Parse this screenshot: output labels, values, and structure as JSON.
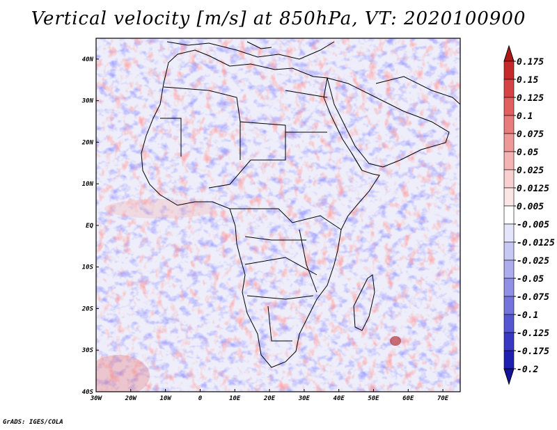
{
  "title": "Vertical velocity [m/s] at 850hPa, VT: 2020100900",
  "credit": "GrADS: IGES/COLA",
  "map": {
    "region": "Africa and surrounding oceans",
    "variable": "vertical velocity",
    "units": "m/s",
    "level": "850hPa",
    "valid_time": "2020100900",
    "lon_range": [
      -30,
      75
    ],
    "lat_range": [
      -40,
      45
    ],
    "lon_ticks": [
      {
        "v": -30,
        "label": "30W"
      },
      {
        "v": -20,
        "label": "20W"
      },
      {
        "v": -10,
        "label": "10W"
      },
      {
        "v": 0,
        "label": "0"
      },
      {
        "v": 10,
        "label": "10E"
      },
      {
        "v": 20,
        "label": "20E"
      },
      {
        "v": 30,
        "label": "30E"
      },
      {
        "v": 40,
        "label": "40E"
      },
      {
        "v": 50,
        "label": "50E"
      },
      {
        "v": 60,
        "label": "60E"
      },
      {
        "v": 70,
        "label": "70E"
      }
    ],
    "lat_ticks": [
      {
        "v": 40,
        "label": "40N"
      },
      {
        "v": 30,
        "label": "30N"
      },
      {
        "v": 20,
        "label": "20N"
      },
      {
        "v": 10,
        "label": "10N"
      },
      {
        "v": 0,
        "label": "EQ"
      },
      {
        "v": -10,
        "label": "10S"
      },
      {
        "v": -20,
        "label": "20S"
      },
      {
        "v": -30,
        "label": "30S"
      },
      {
        "v": -40,
        "label": "40S"
      }
    ]
  },
  "colorbar": {
    "labels": [
      "0.175",
      "0.15",
      "0.125",
      "0.1",
      "0.075",
      "0.05",
      "0.025",
      "0.0125",
      "0.005",
      "-0.005",
      "-0.0125",
      "-0.025",
      "-0.05",
      "-0.075",
      "-0.1",
      "-0.125",
      "-0.175",
      "-0.2"
    ],
    "colors": [
      "#b01818",
      "#c42a2a",
      "#d44444",
      "#e06060",
      "#e87c7c",
      "#ee9898",
      "#f4b4b4",
      "#f8d0d0",
      "#fbe6e6",
      "#ffffff",
      "#e4e4fa",
      "#c8c8f4",
      "#acacee",
      "#9090e6",
      "#7474dc",
      "#5656d0",
      "#3838c0",
      "#2020b0",
      "#14149a"
    ]
  }
}
